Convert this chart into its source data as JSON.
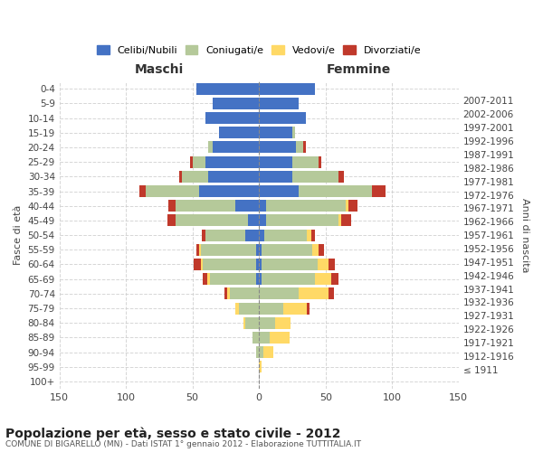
{
  "age_groups": [
    "100+",
    "95-99",
    "90-94",
    "85-89",
    "80-84",
    "75-79",
    "70-74",
    "65-69",
    "60-64",
    "55-59",
    "50-54",
    "45-49",
    "40-44",
    "35-39",
    "30-34",
    "25-29",
    "20-24",
    "15-19",
    "10-14",
    "5-9",
    "0-4"
  ],
  "birth_years": [
    "≤ 1911",
    "1912-1916",
    "1917-1921",
    "1922-1926",
    "1927-1931",
    "1932-1936",
    "1937-1941",
    "1942-1946",
    "1947-1951",
    "1952-1956",
    "1957-1961",
    "1962-1966",
    "1967-1971",
    "1972-1976",
    "1977-1981",
    "1982-1986",
    "1987-1991",
    "1992-1996",
    "1997-2001",
    "2002-2006",
    "2007-2011"
  ],
  "males": {
    "celibi": [
      0,
      0,
      0,
      0,
      0,
      0,
      0,
      2,
      2,
      2,
      10,
      8,
      18,
      45,
      38,
      40,
      35,
      30,
      40,
      35,
      47
    ],
    "coniugati": [
      0,
      0,
      2,
      5,
      10,
      15,
      22,
      35,
      40,
      42,
      30,
      55,
      45,
      40,
      20,
      10,
      3,
      0,
      0,
      0,
      0
    ],
    "vedovi": [
      0,
      0,
      0,
      0,
      2,
      3,
      2,
      2,
      2,
      1,
      0,
      0,
      0,
      0,
      0,
      0,
      0,
      0,
      0,
      0,
      0
    ],
    "divorziati": [
      0,
      0,
      0,
      0,
      0,
      0,
      2,
      3,
      5,
      2,
      3,
      6,
      5,
      5,
      2,
      2,
      0,
      0,
      0,
      0,
      0
    ]
  },
  "females": {
    "nubili": [
      0,
      0,
      0,
      0,
      0,
      0,
      0,
      2,
      2,
      2,
      4,
      5,
      5,
      30,
      25,
      25,
      28,
      25,
      35,
      30,
      42
    ],
    "coniugate": [
      0,
      0,
      3,
      8,
      12,
      18,
      30,
      40,
      42,
      38,
      32,
      55,
      60,
      55,
      35,
      20,
      5,
      2,
      0,
      0,
      0
    ],
    "vedove": [
      0,
      2,
      8,
      15,
      12,
      18,
      22,
      12,
      8,
      5,
      3,
      2,
      2,
      0,
      0,
      0,
      0,
      0,
      0,
      0,
      0
    ],
    "divorziate": [
      0,
      0,
      0,
      0,
      0,
      2,
      4,
      6,
      5,
      4,
      3,
      7,
      7,
      10,
      4,
      2,
      2,
      0,
      0,
      0,
      0
    ]
  },
  "colors": {
    "celibi_nubili": "#4472C4",
    "coniugati": "#B5C99A",
    "vedovi": "#FFD966",
    "divorziati": "#C0392B"
  },
  "xlim": 150,
  "title": "Popolazione per età, sesso e stato civile - 2012",
  "subtitle": "COMUNE DI BIGARELLO (MN) - Dati ISTAT 1° gennaio 2012 - Elaborazione TUTTITALIA.IT",
  "xlabel_left": "Maschi",
  "xlabel_right": "Femmine",
  "ylabel_left": "Fasce di età",
  "ylabel_right": "Anni di nascita",
  "legend_labels": [
    "Celibi/Nubili",
    "Coniugati/e",
    "Vedovi/e",
    "Divorziati/e"
  ],
  "background_color": "#ffffff",
  "grid_color": "#cccccc"
}
